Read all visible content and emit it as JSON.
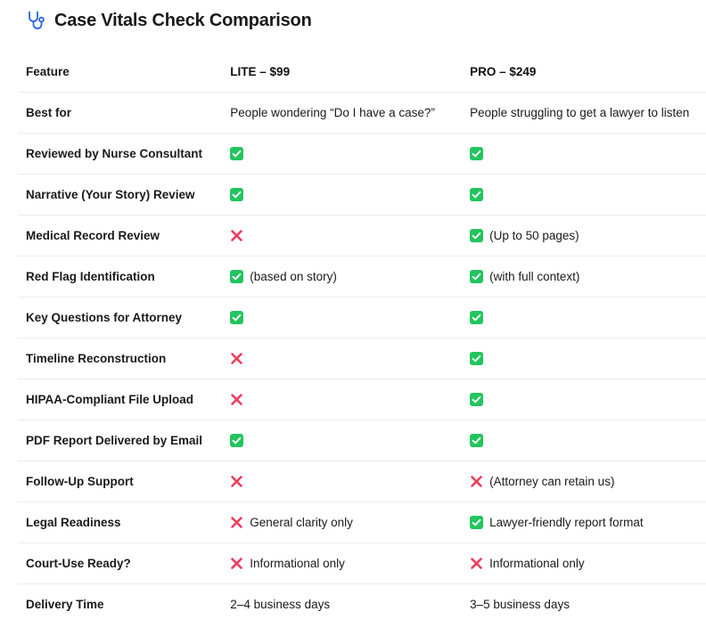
{
  "title": "Case Vitals Check Comparison",
  "icon": "stethoscope-icon",
  "colors": {
    "check": "#22c55e",
    "cross": "#ef3b5a",
    "icon": "#2563eb"
  },
  "columns": {
    "feature": "Feature",
    "lite": "LITE – $99",
    "pro": "PRO – $249"
  },
  "rows": [
    {
      "feature": "Best for",
      "lite": {
        "mark": "none",
        "text": "People wondering “Do I have a case?”"
      },
      "pro": {
        "mark": "none",
        "text": "People struggling to get a lawyer to listen"
      }
    },
    {
      "feature": "Reviewed by Nurse Consultant",
      "lite": {
        "mark": "check",
        "text": ""
      },
      "pro": {
        "mark": "check",
        "text": ""
      }
    },
    {
      "feature": "Narrative (Your Story) Review",
      "lite": {
        "mark": "check",
        "text": ""
      },
      "pro": {
        "mark": "check",
        "text": ""
      }
    },
    {
      "feature": "Medical Record Review",
      "lite": {
        "mark": "cross",
        "text": ""
      },
      "pro": {
        "mark": "check",
        "text": "(Up to 50 pages)"
      }
    },
    {
      "feature": "Red Flag Identification",
      "lite": {
        "mark": "check",
        "text": "(based on story)"
      },
      "pro": {
        "mark": "check",
        "text": "(with full context)"
      }
    },
    {
      "feature": "Key Questions for Attorney",
      "lite": {
        "mark": "check",
        "text": ""
      },
      "pro": {
        "mark": "check",
        "text": ""
      }
    },
    {
      "feature": "Timeline Reconstruction",
      "lite": {
        "mark": "cross",
        "text": ""
      },
      "pro": {
        "mark": "check",
        "text": ""
      }
    },
    {
      "feature": "HIPAA-Compliant File Upload",
      "lite": {
        "mark": "cross",
        "text": ""
      },
      "pro": {
        "mark": "check",
        "text": ""
      }
    },
    {
      "feature": "PDF Report Delivered by Email",
      "lite": {
        "mark": "check",
        "text": ""
      },
      "pro": {
        "mark": "check",
        "text": ""
      }
    },
    {
      "feature": "Follow-Up Support",
      "lite": {
        "mark": "cross",
        "text": ""
      },
      "pro": {
        "mark": "cross",
        "text": "(Attorney can retain us)"
      }
    },
    {
      "feature": "Legal Readiness",
      "lite": {
        "mark": "cross",
        "text": "General clarity only"
      },
      "pro": {
        "mark": "check",
        "text": "Lawyer-friendly report format"
      }
    },
    {
      "feature": "Court-Use Ready?",
      "lite": {
        "mark": "cross",
        "text": "Informational only"
      },
      "pro": {
        "mark": "cross",
        "text": "Informational only"
      }
    },
    {
      "feature": "Delivery Time",
      "lite": {
        "mark": "none",
        "text": "2–4 business days"
      },
      "pro": {
        "mark": "none",
        "text": "3–5 business days"
      }
    }
  ]
}
